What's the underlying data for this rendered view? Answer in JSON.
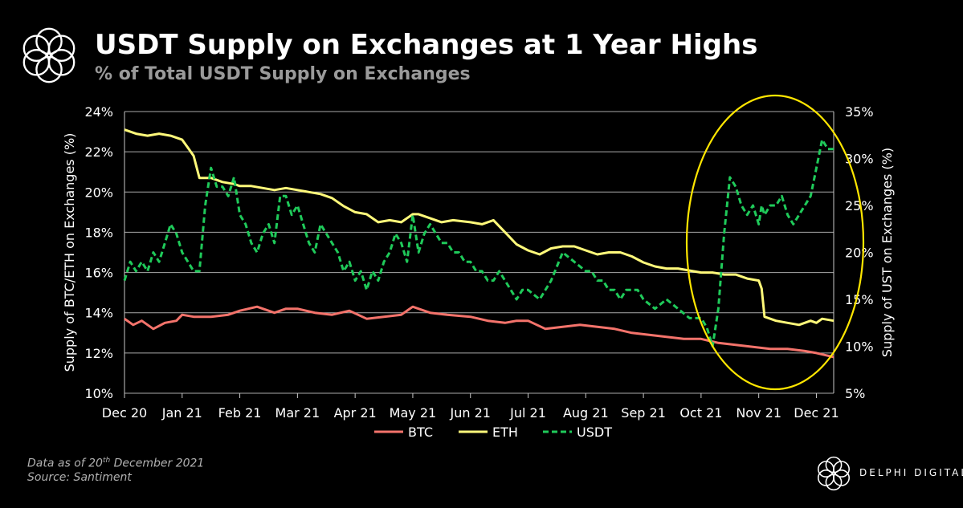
{
  "header": {
    "title": "USDT Supply on Exchanges at 1 Year Highs",
    "subtitle": "% of Total USDT Supply on Exchanges"
  },
  "footer": {
    "note": "Data as of 20th December 2021",
    "source": "Source: Santiment",
    "brand": "DELPHI DIGITAL"
  },
  "colors": {
    "background": "#000000",
    "grid": "#c8c8c8",
    "btc": "#f4736b",
    "eth": "#fff97a",
    "usdt": "#1fca5a",
    "annotation": "#ffe600"
  },
  "chart_data": {
    "type": "line",
    "x": [
      "Dec 20",
      "Jan 21",
      "Feb 21",
      "Mar 21",
      "Apr 21",
      "May 21",
      "Jun 21",
      "Jul 21",
      "Aug 21",
      "Sep 21",
      "Oct 21",
      "Nov 21",
      "Dec 21"
    ],
    "x_range": [
      0,
      12.3
    ],
    "ylabel_left": "Supply of BTC/ETH on Exchanges (%)",
    "ylabel_right": "Supply of UST on Exchanges (%)",
    "ylim_left": [
      10,
      24
    ],
    "ylim_right": [
      5,
      35
    ],
    "yticks_left": [
      "10%",
      "12%",
      "14%",
      "16%",
      "18%",
      "20%",
      "22%",
      "24%"
    ],
    "yticks_right": [
      "5%",
      "10%",
      "15%",
      "20%",
      "25%",
      "30%",
      "35%"
    ],
    "grid": "horizontal",
    "legend": "bottom-center",
    "annotation": "yellow ellipse highlighting Oct 21 – Dec 21",
    "series": [
      {
        "name": "BTC",
        "axis": "left",
        "style": "solid",
        "x": [
          0,
          0.15,
          0.3,
          0.5,
          0.7,
          0.9,
          1.0,
          1.2,
          1.5,
          1.8,
          2.0,
          2.3,
          2.6,
          2.8,
          3.0,
          3.3,
          3.6,
          3.9,
          4.2,
          4.5,
          4.8,
          5.0,
          5.3,
          5.6,
          6.0,
          6.3,
          6.6,
          6.8,
          7.0,
          7.3,
          7.6,
          7.9,
          8.2,
          8.5,
          8.8,
          9.1,
          9.4,
          9.7,
          10.0,
          10.3,
          10.6,
          10.9,
          11.2,
          11.5,
          11.8,
          12.0,
          12.3
        ],
        "values": [
          13.7,
          13.4,
          13.6,
          13.2,
          13.5,
          13.6,
          13.9,
          13.8,
          13.8,
          13.9,
          14.1,
          14.3,
          14.0,
          14.2,
          14.2,
          14.0,
          13.9,
          14.1,
          13.7,
          13.8,
          13.9,
          14.3,
          14.0,
          13.9,
          13.8,
          13.6,
          13.5,
          13.6,
          13.6,
          13.2,
          13.3,
          13.4,
          13.3,
          13.2,
          13.0,
          12.9,
          12.8,
          12.7,
          12.7,
          12.5,
          12.4,
          12.3,
          12.2,
          12.2,
          12.1,
          12.0,
          11.8
        ]
      },
      {
        "name": "ETH",
        "axis": "left",
        "style": "solid",
        "x": [
          0,
          0.2,
          0.4,
          0.6,
          0.8,
          1.0,
          1.1,
          1.2,
          1.3,
          1.5,
          1.7,
          1.9,
          2.0,
          2.2,
          2.4,
          2.6,
          2.8,
          3.0,
          3.2,
          3.4,
          3.6,
          3.8,
          4.0,
          4.2,
          4.4,
          4.6,
          4.8,
          5.0,
          5.1,
          5.3,
          5.5,
          5.7,
          6.0,
          6.2,
          6.4,
          6.6,
          6.8,
          7.0,
          7.2,
          7.4,
          7.6,
          7.8,
          8.0,
          8.2,
          8.4,
          8.6,
          8.8,
          9.0,
          9.2,
          9.4,
          9.6,
          9.8,
          10.0,
          10.2,
          10.4,
          10.6,
          10.8,
          11.0,
          11.05,
          11.1,
          11.3,
          11.5,
          11.7,
          11.9,
          12.0,
          12.1,
          12.3
        ],
        "values": [
          23.1,
          22.9,
          22.8,
          22.9,
          22.8,
          22.6,
          22.2,
          21.8,
          20.7,
          20.7,
          20.5,
          20.4,
          20.3,
          20.3,
          20.2,
          20.1,
          20.2,
          20.1,
          20.0,
          19.9,
          19.7,
          19.3,
          19.0,
          18.9,
          18.5,
          18.6,
          18.5,
          18.9,
          18.9,
          18.7,
          18.5,
          18.6,
          18.5,
          18.4,
          18.6,
          18.0,
          17.4,
          17.1,
          16.9,
          17.2,
          17.3,
          17.3,
          17.1,
          16.9,
          17.0,
          17.0,
          16.8,
          16.5,
          16.3,
          16.2,
          16.2,
          16.1,
          16.0,
          16.0,
          15.9,
          15.9,
          15.7,
          15.6,
          15.2,
          13.8,
          13.6,
          13.5,
          13.4,
          13.6,
          13.5,
          13.7,
          13.6
        ]
      },
      {
        "name": "USDT",
        "axis": "right",
        "style": "dashed",
        "x": [
          0,
          0.1,
          0.2,
          0.3,
          0.4,
          0.5,
          0.6,
          0.7,
          0.8,
          0.9,
          1.0,
          1.1,
          1.2,
          1.3,
          1.4,
          1.5,
          1.6,
          1.7,
          1.8,
          1.9,
          2.0,
          2.1,
          2.2,
          2.3,
          2.4,
          2.5,
          2.6,
          2.7,
          2.8,
          2.9,
          3.0,
          3.1,
          3.2,
          3.3,
          3.4,
          3.5,
          3.6,
          3.7,
          3.8,
          3.9,
          4.0,
          4.1,
          4.2,
          4.3,
          4.4,
          4.5,
          4.6,
          4.7,
          4.8,
          4.9,
          5.0,
          5.1,
          5.2,
          5.3,
          5.4,
          5.5,
          5.6,
          5.7,
          5.8,
          5.9,
          6.0,
          6.1,
          6.2,
          6.3,
          6.4,
          6.5,
          6.6,
          6.7,
          6.8,
          6.9,
          7.0,
          7.2,
          7.4,
          7.6,
          7.8,
          8.0,
          8.1,
          8.2,
          8.3,
          8.4,
          8.5,
          8.6,
          8.7,
          8.8,
          8.9,
          9.0,
          9.2,
          9.4,
          9.6,
          9.8,
          10.0,
          10.1,
          10.2,
          10.3,
          10.4,
          10.5,
          10.6,
          10.7,
          10.8,
          10.9,
          11.0,
          11.05,
          11.1,
          11.2,
          11.3,
          11.4,
          11.5,
          11.6,
          11.7,
          11.8,
          11.9,
          12.0,
          12.1,
          12.2,
          12.3
        ],
        "values": [
          17,
          19,
          18,
          19,
          18,
          20,
          19,
          21,
          23,
          22,
          20,
          19,
          18,
          18,
          25,
          29,
          27,
          27,
          26,
          28,
          24,
          23,
          21,
          20,
          22,
          23,
          21,
          26,
          26,
          24,
          25,
          23,
          21,
          20,
          23,
          22,
          21,
          20,
          18,
          19,
          17,
          18,
          16,
          18,
          17,
          19,
          20,
          22,
          21,
          19,
          24,
          20,
          22,
          23,
          22,
          21,
          21,
          20,
          20,
          19,
          19,
          18,
          18,
          17,
          17,
          18,
          17,
          16,
          15,
          16,
          16,
          15,
          17,
          20,
          19,
          18,
          18,
          17,
          17,
          16,
          16,
          15,
          16,
          16,
          16,
          15,
          14,
          15,
          14,
          13,
          13,
          12,
          10,
          14,
          22,
          28,
          27,
          25,
          24,
          25,
          23,
          25,
          24,
          25,
          25,
          26,
          24,
          23,
          24,
          25,
          26,
          29,
          32,
          31,
          31
        ]
      }
    ]
  }
}
